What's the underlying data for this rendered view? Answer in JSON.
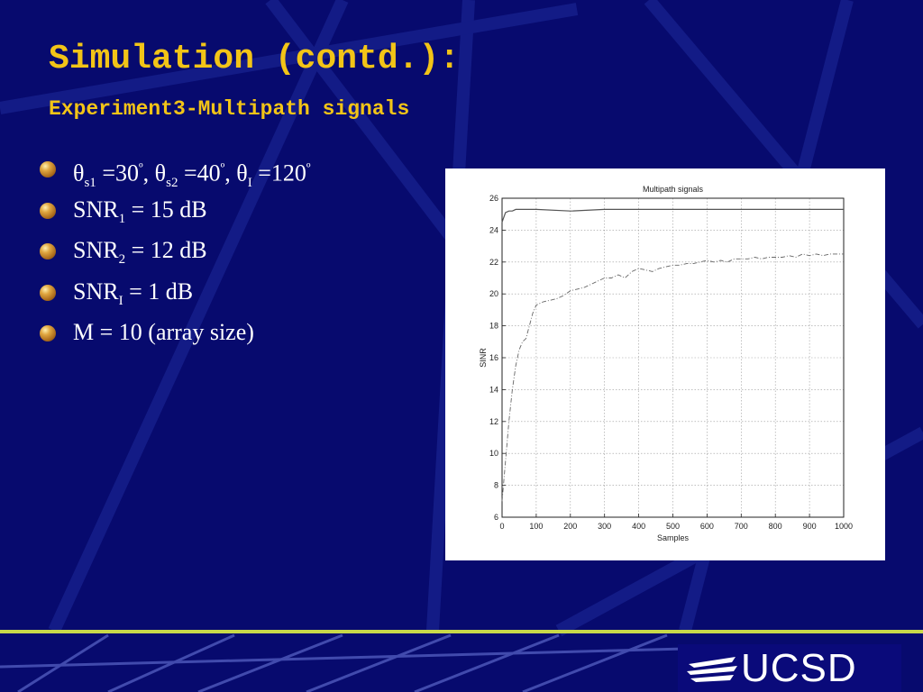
{
  "slide": {
    "title": "Simulation (contd.):",
    "subtitle": "Experiment3-Multipath signals"
  },
  "bullets": [
    {
      "theta": "θ",
      "s1_sub": "s1",
      "s1_val": " =30",
      "deg": "º",
      "s2_sub": "s2",
      "s2_val": " =40",
      "i_sub": "I",
      "i_val": " =120"
    },
    {
      "prefix": "SNR",
      "sub": "1",
      "suffix": " = 15 dB"
    },
    {
      "prefix": "SNR",
      "sub": "2",
      "suffix": " = 12 dB"
    },
    {
      "prefix": "SNR",
      "sub": "I",
      "suffix": " = 1 dB"
    },
    {
      "text": "M = 10  (array size)"
    }
  ],
  "logo": {
    "text": "UCSD"
  },
  "colors": {
    "background": "#070a6e",
    "title": "#f2c417",
    "stripe": "#c8d84a"
  },
  "chart_data": {
    "type": "line",
    "title": "Multipath signals",
    "xlabel": "Samples",
    "ylabel": "SINR",
    "xlim": [
      0,
      1000
    ],
    "ylim": [
      6,
      26
    ],
    "xticks": [
      0,
      100,
      200,
      300,
      400,
      500,
      600,
      700,
      800,
      900,
      1000
    ],
    "yticks": [
      6,
      8,
      10,
      12,
      14,
      16,
      18,
      20,
      22,
      24,
      26
    ],
    "grid": true,
    "series": [
      {
        "style": "solid",
        "x": [
          0,
          10,
          20,
          30,
          40,
          60,
          100,
          200,
          300,
          400,
          500,
          600,
          700,
          800,
          900,
          1000
        ],
        "y": [
          24.5,
          25.1,
          25.2,
          25.2,
          25.3,
          25.3,
          25.3,
          25.2,
          25.3,
          25.3,
          25.3,
          25.3,
          25.3,
          25.3,
          25.3,
          25.3
        ]
      },
      {
        "style": "dashdot",
        "x": [
          0,
          10,
          20,
          30,
          40,
          50,
          60,
          70,
          80,
          90,
          100,
          120,
          140,
          160,
          180,
          200,
          220,
          240,
          260,
          280,
          300,
          320,
          340,
          360,
          380,
          400,
          420,
          440,
          460,
          480,
          500,
          520,
          540,
          560,
          580,
          600,
          620,
          640,
          660,
          680,
          700,
          720,
          740,
          760,
          780,
          800,
          820,
          840,
          860,
          880,
          900,
          920,
          940,
          960,
          980,
          1000
        ],
        "y": [
          7.0,
          9.5,
          12.0,
          14.0,
          15.5,
          16.5,
          17.0,
          17.2,
          18.0,
          18.8,
          19.3,
          19.5,
          19.6,
          19.7,
          19.9,
          20.2,
          20.3,
          20.4,
          20.6,
          20.8,
          21.0,
          21.0,
          21.2,
          21.0,
          21.4,
          21.6,
          21.5,
          21.4,
          21.6,
          21.7,
          21.8,
          21.8,
          21.9,
          21.9,
          22.0,
          22.1,
          22.0,
          22.1,
          22.0,
          22.2,
          22.2,
          22.2,
          22.3,
          22.2,
          22.3,
          22.3,
          22.3,
          22.4,
          22.3,
          22.5,
          22.4,
          22.5,
          22.4,
          22.5,
          22.5,
          22.5
        ]
      }
    ]
  }
}
